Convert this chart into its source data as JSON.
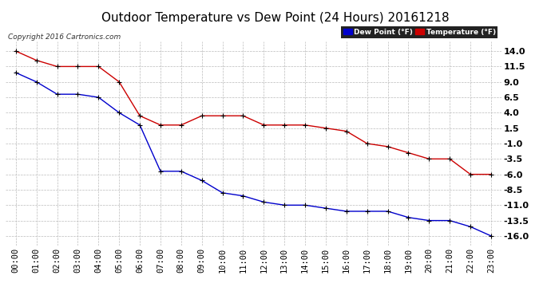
{
  "title": "Outdoor Temperature vs Dew Point (24 Hours) 20161218",
  "copyright": "Copyright 2016 Cartronics.com",
  "legend_dew": "Dew Point (°F)",
  "legend_temp": "Temperature (°F)",
  "x_labels": [
    "00:00",
    "01:00",
    "02:00",
    "03:00",
    "04:00",
    "05:00",
    "06:00",
    "07:00",
    "08:00",
    "09:00",
    "10:00",
    "11:00",
    "12:00",
    "13:00",
    "14:00",
    "15:00",
    "16:00",
    "17:00",
    "18:00",
    "19:00",
    "20:00",
    "21:00",
    "22:00",
    "23:00"
  ],
  "temperature": [
    14.0,
    12.5,
    11.5,
    11.5,
    11.5,
    9.0,
    3.5,
    2.0,
    2.0,
    3.5,
    3.5,
    3.5,
    2.0,
    2.0,
    2.0,
    1.5,
    1.0,
    -1.0,
    -1.5,
    -2.5,
    -3.5,
    -3.5,
    -6.0,
    -6.0
  ],
  "dew_point": [
    10.5,
    9.0,
    7.0,
    7.0,
    6.5,
    4.0,
    2.0,
    -5.5,
    -5.5,
    -7.0,
    -9.0,
    -9.5,
    -10.5,
    -11.0,
    -11.0,
    -11.5,
    -12.0,
    -12.0,
    -12.0,
    -13.0,
    -13.5,
    -13.5,
    -14.5,
    -16.0
  ],
  "ylim": [
    -17.5,
    15.5
  ],
  "yticks": [
    14.0,
    11.5,
    9.0,
    6.5,
    4.0,
    1.5,
    -1.0,
    -3.5,
    -6.0,
    -8.5,
    -11.0,
    -13.5,
    -16.0
  ],
  "bg_color": "#ffffff",
  "grid_color": "#bbbbbb",
  "temp_color": "#cc0000",
  "dew_color": "#0000cc",
  "marker_color": "#000000",
  "title_fontsize": 11,
  "axis_fontsize": 7.5,
  "copyright_fontsize": 6.5
}
